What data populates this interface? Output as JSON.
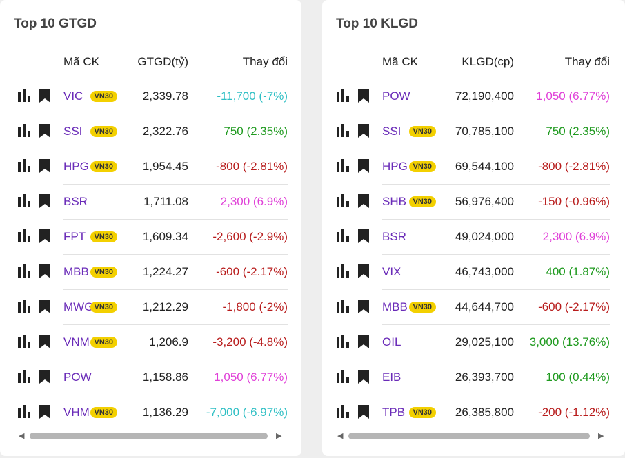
{
  "panels": [
    {
      "title": "Top 10 GTGD",
      "headers": [
        "Mã CK",
        "GTGD(tỷ)",
        "Thay đổi"
      ],
      "rows": [
        {
          "ticker": "VIC",
          "badge": "VN30",
          "value": "2,339.78",
          "change": "-11,700 (-7%)",
          "color": "#2ebfc4"
        },
        {
          "ticker": "SSI",
          "badge": "VN30",
          "value": "2,322.76",
          "change": "750 (2.35%)",
          "color": "#1f9a1f"
        },
        {
          "ticker": "HPG",
          "badge": "VN30",
          "value": "1,954.45",
          "change": "-800 (-2.81%)",
          "color": "#b81c1c"
        },
        {
          "ticker": "BSR",
          "value": "1,711.08",
          "change": "2,300 (6.9%)",
          "color": "#e040d8"
        },
        {
          "ticker": "FPT",
          "badge": "VN30",
          "value": "1,609.34",
          "change": "-2,600 (-2.9%)",
          "color": "#b81c1c"
        },
        {
          "ticker": "MBB",
          "badge": "VN30",
          "value": "1,224.27",
          "change": "-600 (-2.17%)",
          "color": "#b81c1c"
        },
        {
          "ticker": "MWG",
          "badge": "VN30",
          "value": "1,212.29",
          "change": "-1,800 (-2%)",
          "color": "#b81c1c"
        },
        {
          "ticker": "VNM",
          "badge": "VN30",
          "value": "1,206.9",
          "change": "-3,200 (-4.8%)",
          "color": "#b81c1c"
        },
        {
          "ticker": "POW",
          "value": "1,158.86",
          "change": "1,050 (6.77%)",
          "color": "#e040d8"
        },
        {
          "ticker": "VHM",
          "badge": "VN30",
          "value": "1,136.29",
          "change": "-7,000 (-6.97%)",
          "color": "#2ebfc4"
        }
      ]
    },
    {
      "title": "Top 10 KLGD",
      "headers": [
        "Mã CK",
        "KLGD(cp)",
        "Thay đổi"
      ],
      "rows": [
        {
          "ticker": "POW",
          "value": "72,190,400",
          "change": "1,050 (6.77%)",
          "color": "#e040d8"
        },
        {
          "ticker": "SSI",
          "badge": "VN30",
          "value": "70,785,100",
          "change": "750 (2.35%)",
          "color": "#1f9a1f"
        },
        {
          "ticker": "HPG",
          "badge": "VN30",
          "value": "69,544,100",
          "change": "-800 (-2.81%)",
          "color": "#b81c1c"
        },
        {
          "ticker": "SHB",
          "badge": "VN30",
          "value": "56,976,400",
          "change": "-150 (-0.96%)",
          "color": "#b81c1c"
        },
        {
          "ticker": "BSR",
          "value": "49,024,000",
          "change": "2,300 (6.9%)",
          "color": "#e040d8"
        },
        {
          "ticker": "VIX",
          "value": "46,743,000",
          "change": "400 (1.87%)",
          "color": "#1f9a1f"
        },
        {
          "ticker": "MBB",
          "badge": "VN30",
          "value": "44,644,700",
          "change": "-600 (-2.17%)",
          "color": "#b81c1c"
        },
        {
          "ticker": "OIL",
          "value": "29,025,100",
          "change": "3,000 (13.76%)",
          "color": "#1f9a1f"
        },
        {
          "ticker": "EIB",
          "value": "26,393,700",
          "change": "100 (0.44%)",
          "color": "#1f9a1f"
        },
        {
          "ticker": "TPB",
          "badge": "VN30",
          "value": "26,385,800",
          "change": "-200 (-1.12%)",
          "color": "#b81c1c"
        }
      ]
    }
  ]
}
